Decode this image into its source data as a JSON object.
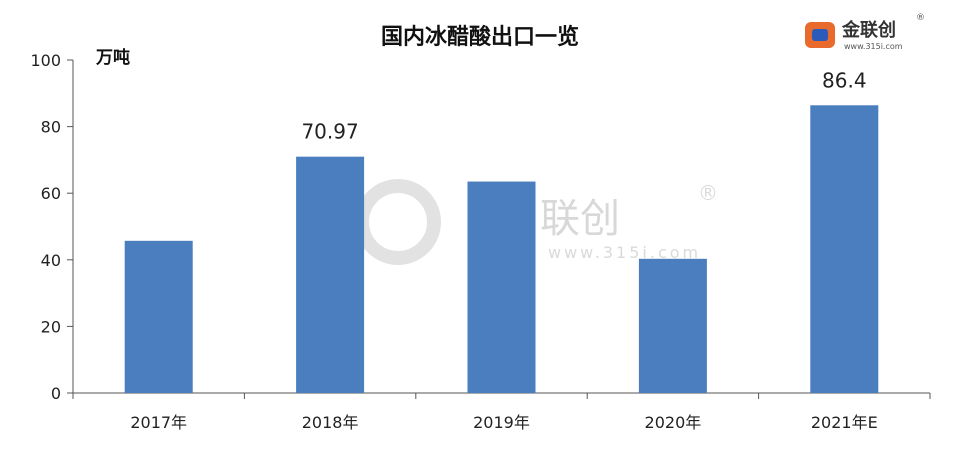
{
  "logo": {
    "name": "金联创",
    "site": "www.315i.com",
    "registered": "®"
  },
  "watermark": {
    "name": "联创",
    "site": "www.315i.com",
    "registered": "®"
  },
  "chart_data": {
    "type": "bar",
    "title": "国内冰醋酸出口一览",
    "ylabel": "万吨",
    "xlabel": "",
    "categories": [
      "2017年",
      "2018年",
      "2019年",
      "2020年",
      "2021年E"
    ],
    "values": [
      45.7,
      70.97,
      63.5,
      40.3,
      86.4
    ],
    "data_labels": [
      "",
      "70.97",
      "",
      "",
      "86.4"
    ],
    "ylim": [
      0,
      100
    ],
    "yticks": [
      0,
      20,
      40,
      60,
      80,
      100
    ],
    "bar_color": "#4a7ebf",
    "grid": false,
    "legend": "none"
  }
}
